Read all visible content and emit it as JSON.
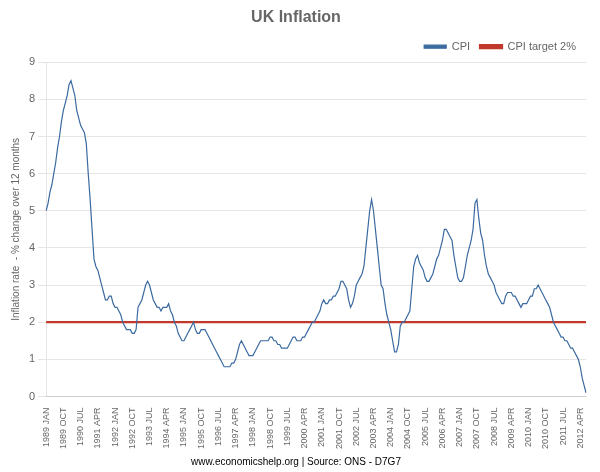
{
  "chart_data": {
    "type": "line",
    "title": "UK Inflation",
    "ylabel": "Inflation rate  - % change over 12 months",
    "footnote": "www.economicshelp.org | Source: ONS - D7G7",
    "categories": [
      "1989 JAN",
      null,
      null,
      null,
      null,
      null,
      null,
      null,
      null,
      "1989 OCT",
      null,
      null,
      null,
      null,
      null,
      null,
      null,
      null,
      "1990 JUL",
      null,
      null,
      null,
      null,
      null,
      null,
      null,
      null,
      "1991 APR",
      null,
      null,
      null,
      null,
      null,
      null,
      null,
      null,
      "1992 JAN",
      null,
      null,
      null,
      null,
      null,
      null,
      null,
      null,
      "1992 OCT",
      null,
      null,
      null,
      null,
      null,
      null,
      null,
      null,
      "1993 JUL",
      null,
      null,
      null,
      null,
      null,
      null,
      null,
      null,
      "1994 APR",
      null,
      null,
      null,
      null,
      null,
      null,
      null,
      null,
      "1995 JAN",
      null,
      null,
      null,
      null,
      null,
      null,
      null,
      null,
      "1995 OCT",
      null,
      null,
      null,
      null,
      null,
      null,
      null,
      null,
      "1996 JUL",
      null,
      null,
      null,
      null,
      null,
      null,
      null,
      null,
      "1997 APR",
      null,
      null,
      null,
      null,
      null,
      null,
      null,
      null,
      "1998 JAN",
      null,
      null,
      null,
      null,
      null,
      null,
      null,
      null,
      "1998 OCT",
      null,
      null,
      null,
      null,
      null,
      null,
      null,
      null,
      "1999 JUL",
      null,
      null,
      null,
      null,
      null,
      null,
      null,
      null,
      "2000 APR",
      null,
      null,
      null,
      null,
      null,
      null,
      null,
      null,
      "2001 JAN",
      null,
      null,
      null,
      null,
      null,
      null,
      null,
      null,
      "2001 OCT",
      null,
      null,
      null,
      null,
      null,
      null,
      null,
      null,
      "2002 JUL",
      null,
      null,
      null,
      null,
      null,
      null,
      null,
      null,
      "2003 APR",
      null,
      null,
      null,
      null,
      null,
      null,
      null,
      null,
      "2004 JAN",
      null,
      null,
      null,
      null,
      null,
      null,
      null,
      null,
      "2004 OCT",
      null,
      null,
      null,
      null,
      null,
      null,
      null,
      null,
      "2005 JUL",
      null,
      null,
      null,
      null,
      null,
      null,
      null,
      null,
      "2006 APR",
      null,
      null,
      null,
      null,
      null,
      null,
      null,
      null,
      "2007 JAN",
      null,
      null,
      null,
      null,
      null,
      null,
      null,
      null,
      "2007 OCT",
      null,
      null,
      null,
      null,
      null,
      null,
      null,
      null,
      "2008 JUL",
      null,
      null,
      null,
      null,
      null,
      null,
      null,
      null,
      "2009 APR",
      null,
      null,
      null,
      null,
      null,
      null,
      null,
      null,
      "2010 JAN",
      null,
      null,
      null,
      null,
      null,
      null,
      null,
      null,
      "2010 OCT",
      null,
      null,
      null,
      null,
      null,
      null,
      null,
      null,
      "2011 JUL",
      null,
      null,
      null,
      null,
      null,
      null,
      null,
      null,
      "2012 APR",
      null,
      null,
      null
    ],
    "series": [
      {
        "name": "CPI",
        "color": "#3B6AA0",
        "values": [
          5.0,
          5.2,
          5.5,
          5.7,
          6.0,
          6.3,
          6.7,
          7.0,
          7.4,
          7.7,
          7.9,
          8.1,
          8.4,
          8.5,
          8.3,
          8.1,
          7.7,
          7.5,
          7.3,
          7.2,
          7.1,
          6.8,
          6.0,
          5.3,
          4.5,
          3.7,
          3.5,
          3.4,
          3.2,
          3.0,
          2.8,
          2.6,
          2.6,
          2.7,
          2.7,
          2.5,
          2.4,
          2.4,
          2.3,
          2.2,
          2.0,
          1.9,
          1.8,
          1.8,
          1.8,
          1.7,
          1.7,
          1.8,
          2.4,
          2.5,
          2.6,
          2.8,
          3.0,
          3.1,
          3.0,
          2.8,
          2.6,
          2.5,
          2.4,
          2.4,
          2.3,
          2.4,
          2.4,
          2.4,
          2.5,
          2.3,
          2.2,
          2.0,
          1.9,
          1.7,
          1.6,
          1.5,
          1.5,
          1.6,
          1.7,
          1.8,
          1.9,
          2.0,
          1.8,
          1.7,
          1.7,
          1.8,
          1.8,
          1.8,
          1.7,
          1.6,
          1.5,
          1.4,
          1.3,
          1.2,
          1.1,
          1.0,
          0.9,
          0.8,
          0.8,
          0.8,
          0.8,
          0.9,
          0.9,
          1.0,
          1.2,
          1.4,
          1.5,
          1.4,
          1.3,
          1.2,
          1.1,
          1.1,
          1.1,
          1.2,
          1.3,
          1.4,
          1.5,
          1.5,
          1.5,
          1.5,
          1.5,
          1.6,
          1.6,
          1.5,
          1.5,
          1.4,
          1.4,
          1.3,
          1.3,
          1.3,
          1.3,
          1.4,
          1.5,
          1.6,
          1.6,
          1.5,
          1.5,
          1.5,
          1.6,
          1.6,
          1.7,
          1.8,
          1.9,
          2.0,
          2.0,
          2.1,
          2.2,
          2.3,
          2.5,
          2.6,
          2.5,
          2.5,
          2.6,
          2.6,
          2.7,
          2.7,
          2.8,
          2.9,
          3.1,
          3.1,
          3.0,
          2.9,
          2.6,
          2.4,
          2.5,
          2.7,
          3.0,
          3.1,
          3.2,
          3.3,
          3.5,
          4.0,
          4.5,
          5.0,
          5.3,
          5.0,
          4.5,
          4.0,
          3.5,
          3.0,
          2.9,
          2.5,
          2.2,
          2.0,
          1.8,
          1.5,
          1.2,
          1.2,
          1.4,
          1.9,
          2.0,
          2.0,
          2.1,
          2.2,
          2.3,
          2.9,
          3.5,
          3.7,
          3.8,
          3.6,
          3.5,
          3.4,
          3.2,
          3.1,
          3.1,
          3.2,
          3.3,
          3.5,
          3.7,
          3.8,
          4.0,
          4.2,
          4.5,
          4.5,
          4.4,
          4.3,
          4.2,
          3.8,
          3.5,
          3.2,
          3.1,
          3.1,
          3.2,
          3.5,
          3.8,
          4.0,
          4.2,
          4.5,
          5.2,
          5.3,
          4.8,
          4.4,
          4.2,
          3.8,
          3.5,
          3.3,
          3.2,
          3.1,
          3.0,
          2.8,
          2.7,
          2.6,
          2.5,
          2.5,
          2.7,
          2.8,
          2.8,
          2.8,
          2.7,
          2.7,
          2.6,
          2.5,
          2.4,
          2.5,
          2.5,
          2.5,
          2.6,
          2.7,
          2.7,
          2.9,
          2.9,
          3.0,
          2.9,
          2.8,
          2.7,
          2.6,
          2.5,
          2.4,
          2.2,
          2.0,
          1.9,
          1.8,
          1.7,
          1.6,
          1.6,
          1.5,
          1.5,
          1.4,
          1.3,
          1.3,
          1.2,
          1.1,
          1.0,
          0.8,
          0.5,
          0.3,
          0.1
        ]
      },
      {
        "name": "CPI target 2%",
        "color": "#C0392B",
        "values": [
          2.0,
          2.0,
          2.0,
          2.0,
          2.0,
          2.0,
          2.0,
          2.0,
          2.0,
          2.0,
          2.0,
          2.0,
          2.0,
          2.0,
          2.0,
          2.0,
          2.0,
          2.0,
          2.0,
          2.0,
          2.0,
          2.0,
          2.0,
          2.0,
          2.0,
          2.0,
          2.0,
          2.0,
          2.0,
          2.0,
          2.0,
          2.0,
          2.0,
          2.0,
          2.0,
          2.0,
          2.0,
          2.0,
          2.0,
          2.0,
          2.0,
          2.0,
          2.0,
          2.0,
          2.0,
          2.0,
          2.0,
          2.0,
          2.0,
          2.0,
          2.0,
          2.0,
          2.0,
          2.0,
          2.0,
          2.0,
          2.0,
          2.0,
          2.0,
          2.0,
          2.0,
          2.0,
          2.0,
          2.0,
          2.0,
          2.0,
          2.0,
          2.0,
          2.0,
          2.0,
          2.0,
          2.0,
          2.0,
          2.0,
          2.0,
          2.0,
          2.0,
          2.0,
          2.0,
          2.0,
          2.0,
          2.0,
          2.0,
          2.0,
          2.0,
          2.0,
          2.0,
          2.0,
          2.0,
          2.0,
          2.0,
          2.0,
          2.0,
          2.0,
          2.0,
          2.0,
          2.0,
          2.0,
          2.0,
          2.0,
          2.0,
          2.0,
          2.0,
          2.0,
          2.0,
          2.0,
          2.0,
          2.0,
          2.0,
          2.0,
          2.0,
          2.0,
          2.0,
          2.0,
          2.0,
          2.0,
          2.0,
          2.0,
          2.0,
          2.0,
          2.0,
          2.0,
          2.0,
          2.0,
          2.0,
          2.0,
          2.0,
          2.0,
          2.0,
          2.0,
          2.0,
          2.0,
          2.0,
          2.0,
          2.0,
          2.0,
          2.0,
          2.0,
          2.0,
          2.0,
          2.0,
          2.0,
          2.0,
          2.0,
          2.0,
          2.0,
          2.0,
          2.0,
          2.0,
          2.0,
          2.0,
          2.0,
          2.0,
          2.0,
          2.0,
          2.0,
          2.0,
          2.0,
          2.0,
          2.0,
          2.0,
          2.0,
          2.0,
          2.0,
          2.0,
          2.0,
          2.0,
          2.0,
          2.0,
          2.0,
          2.0,
          2.0,
          2.0,
          2.0,
          2.0,
          2.0,
          2.0,
          2.0,
          2.0,
          2.0,
          2.0,
          2.0,
          2.0,
          2.0,
          2.0,
          2.0,
          2.0,
          2.0,
          2.0,
          2.0,
          2.0,
          2.0,
          2.0,
          2.0,
          2.0,
          2.0,
          2.0,
          2.0,
          2.0,
          2.0,
          2.0,
          2.0,
          2.0,
          2.0,
          2.0,
          2.0,
          2.0,
          2.0,
          2.0,
          2.0,
          2.0,
          2.0,
          2.0,
          2.0,
          2.0,
          2.0,
          2.0,
          2.0,
          2.0,
          2.0,
          2.0,
          2.0,
          2.0,
          2.0,
          2.0,
          2.0,
          2.0,
          2.0,
          2.0,
          2.0,
          2.0,
          2.0,
          2.0,
          2.0,
          2.0,
          2.0,
          2.0,
          2.0,
          2.0,
          2.0,
          2.0,
          2.0,
          2.0,
          2.0,
          2.0,
          2.0,
          2.0,
          2.0,
          2.0,
          2.0,
          2.0,
          2.0,
          2.0,
          2.0,
          2.0,
          2.0,
          2.0,
          2.0,
          2.0,
          2.0,
          2.0,
          2.0,
          2.0,
          2.0,
          2.0,
          2.0,
          2.0,
          2.0,
          2.0,
          2.0,
          2.0,
          2.0,
          2.0,
          2.0,
          2.0,
          2.0,
          2.0,
          2.0,
          2.0,
          2.0,
          2.0,
          2.0,
          2.0
        ]
      }
    ],
    "ylim": [
      0,
      9
    ],
    "yticks": [
      0,
      1,
      2,
      3,
      4,
      5,
      6,
      7,
      8,
      9
    ],
    "grid": true,
    "legend": "upper right"
  }
}
